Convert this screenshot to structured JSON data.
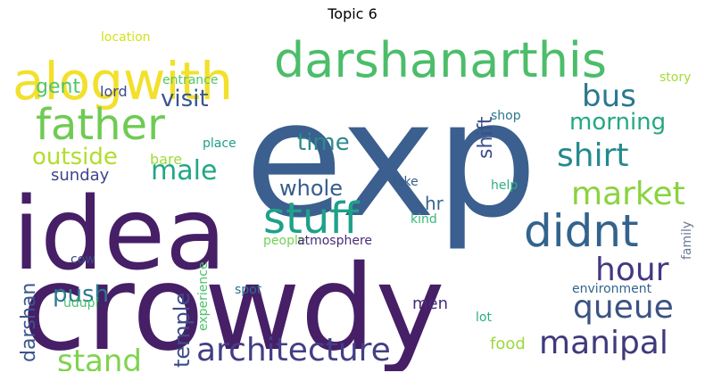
{
  "title": "Topic 6",
  "words": [
    {
      "text": "exp",
      "color": "#3b5f8e"
    },
    {
      "text": "crowdy",
      "color": "#461f67"
    },
    {
      "text": "idea",
      "color": "#461f67"
    },
    {
      "text": "alogwith",
      "color": "#f2e02b"
    },
    {
      "text": "darshanarthis",
      "color": "#4cbd6a"
    },
    {
      "text": "father",
      "color": "#6fcb53"
    },
    {
      "text": "stuff",
      "color": "#1fa189"
    },
    {
      "text": "didnt",
      "color": "#33638d"
    },
    {
      "text": "architecture",
      "color": "#433e85"
    },
    {
      "text": "manipal",
      "color": "#3f3a7c"
    },
    {
      "text": "queue",
      "color": "#3b5383"
    },
    {
      "text": "hour",
      "color": "#453781"
    },
    {
      "text": "market",
      "color": "#8ad33e"
    },
    {
      "text": "shirt",
      "color": "#238a8d"
    },
    {
      "text": "bus",
      "color": "#2a788e"
    },
    {
      "text": "morning",
      "color": "#23a883"
    },
    {
      "text": "male",
      "color": "#22a785"
    },
    {
      "text": "stand",
      "color": "#7fd34e"
    },
    {
      "text": "outside",
      "color": "#b2dd2d"
    },
    {
      "text": "visit",
      "color": "#3a548c"
    },
    {
      "text": "time",
      "color": "#2c8a8c"
    },
    {
      "text": "whole",
      "color": "#365c8d"
    },
    {
      "text": "push",
      "color": "#2a7b8e"
    },
    {
      "text": "temple",
      "color": "#3d4d8a"
    },
    {
      "text": "darshan",
      "color": "#39568c"
    },
    {
      "text": "shift",
      "color": "#3b4d89"
    },
    {
      "text": "gent",
      "color": "#52c569"
    },
    {
      "text": "hr",
      "color": "#39668c"
    },
    {
      "text": "sunday",
      "color": "#404688"
    },
    {
      "text": "bare",
      "color": "#9fda3a"
    },
    {
      "text": "men",
      "color": "#472a7a"
    },
    {
      "text": "lord",
      "color": "#3e4989"
    },
    {
      "text": "entrance",
      "color": "#56c667"
    },
    {
      "text": "place",
      "color": "#1f9e89"
    },
    {
      "text": "location",
      "color": "#d2e21b"
    },
    {
      "text": "story",
      "color": "#a5db36"
    },
    {
      "text": "shop",
      "color": "#2a788e"
    },
    {
      "text": "help",
      "color": "#29af7f"
    },
    {
      "text": "lake",
      "color": "#355f8d"
    },
    {
      "text": "kind",
      "color": "#38b977"
    },
    {
      "text": "family",
      "color": "#6b7b8f"
    },
    {
      "text": "people",
      "color": "#75d054"
    },
    {
      "text": "atmosphere",
      "color": "#472c7a"
    },
    {
      "text": "cow",
      "color": "#3f4788"
    },
    {
      "text": "udupi",
      "color": "#4ac16d"
    },
    {
      "text": "experience",
      "color": "#4cc26c"
    },
    {
      "text": "spot",
      "color": "#2d718e"
    },
    {
      "text": "environment",
      "color": "#32648e"
    },
    {
      "text": "lot",
      "color": "#29af7f"
    },
    {
      "text": "food",
      "color": "#9bd93c"
    }
  ]
}
